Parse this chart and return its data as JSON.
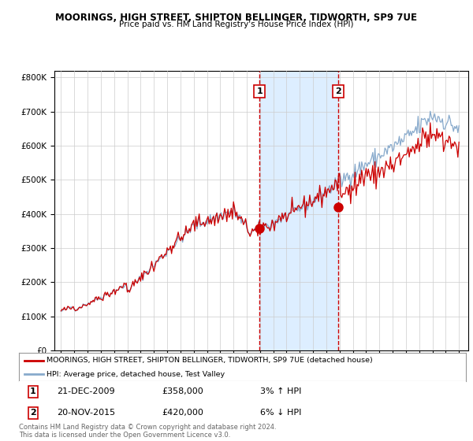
{
  "title1": "MOORINGS, HIGH STREET, SHIPTON BELLINGER, TIDWORTH, SP9 7UE",
  "title2": "Price paid vs. HM Land Registry's House Price Index (HPI)",
  "ylabel_ticks": [
    "£0",
    "£100K",
    "£200K",
    "£300K",
    "£400K",
    "£500K",
    "£600K",
    "£700K",
    "£800K"
  ],
  "ytick_vals": [
    0,
    100000,
    200000,
    300000,
    400000,
    500000,
    600000,
    700000,
    800000
  ],
  "ylim": [
    0,
    820000
  ],
  "xlim_start": 1994.5,
  "xlim_end": 2025.7,
  "shade_start1": 2009.97,
  "shade_end1": 2015.9,
  "vline1_x": 2009.97,
  "vline2_x": 2015.9,
  "marker1_x": 2009.97,
  "marker1_y": 358000,
  "marker2_x": 2015.9,
  "marker2_y": 420000,
  "legend_line1": "MOORINGS, HIGH STREET, SHIPTON BELLINGER, TIDWORTH, SP9 7UE (detached house)",
  "legend_line2": "HPI: Average price, detached house, Test Valley",
  "annotation1_date": "21-DEC-2009",
  "annotation1_price": "£358,000",
  "annotation1_pct": "3% ↑ HPI",
  "annotation2_date": "20-NOV-2015",
  "annotation2_price": "£420,000",
  "annotation2_pct": "6% ↓ HPI",
  "footer": "Contains HM Land Registry data © Crown copyright and database right 2024.\nThis data is licensed under the Open Government Licence v3.0.",
  "line_color_red": "#cc0000",
  "line_color_blue": "#88aacc",
  "shade_color": "#ddeeff",
  "vline_color": "#cc0000",
  "background_color": "#ffffff",
  "grid_color": "#cccccc"
}
